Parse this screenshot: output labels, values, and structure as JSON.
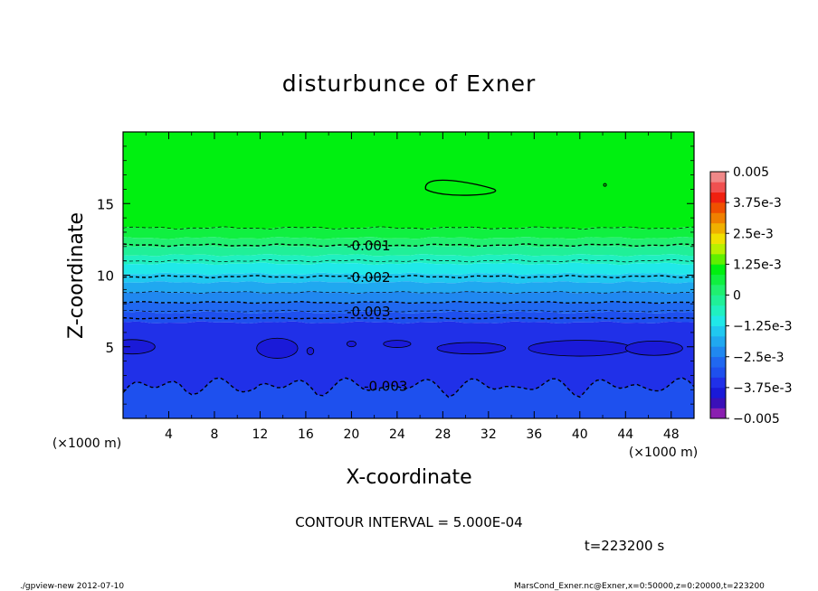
{
  "chart_data": {
    "type": "heatmap",
    "title": "disturbunce of Exner",
    "xlabel": "X-coordinate",
    "ylabel": "Z-coordinate",
    "x_unit_left": "(×1000 m)",
    "x_unit_right": "(×1000 m)",
    "xlim": [
      0,
      50
    ],
    "ylim": [
      0,
      20
    ],
    "x_ticks": [
      4,
      8,
      12,
      16,
      20,
      24,
      28,
      32,
      36,
      40,
      44,
      48
    ],
    "x_tick_labels": [
      "4",
      "8",
      "12",
      "16",
      "20",
      "24",
      "28",
      "32",
      "36",
      "40",
      "44",
      "48"
    ],
    "y_ticks": [
      5,
      10,
      15
    ],
    "y_tick_labels": [
      "5",
      "10",
      "15"
    ],
    "contour_interval_text": "CONTOUR INTERVAL = 5.000E-04",
    "time_text": "t=223200 s",
    "contour_labels": [
      {
        "text": "-0.001",
        "x": 21.5,
        "z": 12.1
      },
      {
        "text": "-0.002",
        "x": 21.5,
        "z": 9.9
      },
      {
        "text": "-0.003",
        "x": 21.5,
        "z": 7.5
      },
      {
        "text": "-0.003",
        "x": 23.0,
        "z": 2.3
      }
    ],
    "levels": [
      -0.005,
      -0.00475,
      -0.0045,
      -0.00425,
      -0.004,
      -0.00375,
      -0.0035,
      -0.00325,
      -0.003,
      -0.00275,
      -0.0025,
      -0.00225,
      -0.002,
      -0.00175,
      -0.0015,
      -0.00125,
      -0.001,
      -0.00075,
      -0.0005,
      -0.00025,
      0,
      0.00125,
      0.0025,
      0.00375,
      0.005
    ],
    "colorbar": {
      "tick_labels": [
        "0.005",
        "3.75e-3",
        "2.5e-3",
        "1.25e-3",
        "0",
        "−1.25e-3",
        "−2.5e-3",
        "−3.75e-3",
        "−0.005"
      ],
      "colors": [
        "#8a1fb0",
        "#3a10b8",
        "#1a1ad8",
        "#2030e8",
        "#1e50ee",
        "#2068f0",
        "#2088f0",
        "#20a8f0",
        "#20c8f0",
        "#20e8e8",
        "#20f0c0",
        "#20f098",
        "#20f070",
        "#10f040",
        "#00f010",
        "#60f000",
        "#b8f000",
        "#f0e000",
        "#f0b000",
        "#f08000",
        "#f05000",
        "#f02010",
        "#f05050",
        "#f08888"
      ],
      "range": [
        -0.005,
        0.005
      ]
    },
    "field_bands": [
      {
        "z_from": 13.3,
        "z_to": 20,
        "color": "#00f010"
      },
      {
        "z_from": 12.6,
        "z_to": 13.3,
        "color": "#10f040"
      },
      {
        "z_from": 12.0,
        "z_to": 12.6,
        "color": "#20f070"
      },
      {
        "z_from": 11.4,
        "z_to": 12.0,
        "color": "#20f098"
      },
      {
        "z_from": 10.8,
        "z_to": 11.4,
        "color": "#20f0c0"
      },
      {
        "z_from": 10.1,
        "z_to": 10.8,
        "color": "#20e8e8"
      },
      {
        "z_from": 9.5,
        "z_to": 10.1,
        "color": "#20c8f0"
      },
      {
        "z_from": 8.8,
        "z_to": 9.5,
        "color": "#20a8f0"
      },
      {
        "z_from": 8.1,
        "z_to": 8.8,
        "color": "#2088f0"
      },
      {
        "z_from": 7.4,
        "z_to": 8.1,
        "color": "#2068f0"
      },
      {
        "z_from": 6.7,
        "z_to": 7.4,
        "color": "#1e50ee"
      },
      {
        "z_from": 0,
        "z_to": 6.7,
        "color": "#2030e8"
      }
    ]
  },
  "footer": {
    "left": "./gpview-new  2012-07-10",
    "right": "MarsCond_Exner.nc@Exner,x=0:50000,z=0:20000,t=223200"
  }
}
